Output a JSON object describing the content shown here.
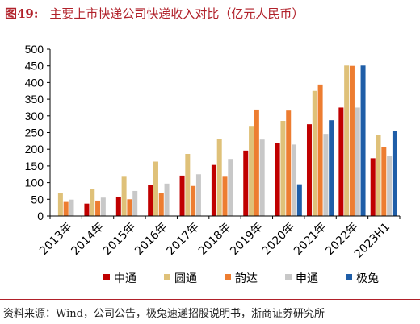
{
  "header": {
    "figure_label": "图49:",
    "title": "主要上市快递公司快递收入对比（亿元人民币）"
  },
  "footer": {
    "source": "资料来源：Wind，公司公告，极兔速递招股说明书，浙商证券研究所"
  },
  "colors": {
    "accent": "#b1212a"
  },
  "chart_data": {
    "type": "bar",
    "categories": [
      "2013年",
      "2014年",
      "2015年",
      "2016年",
      "2017年",
      "2018年",
      "2019年",
      "2020年",
      "2021年",
      "2022年",
      "2023H1"
    ],
    "series": [
      {
        "name": "中通",
        "color": "#c00000",
        "values": [
          null,
          37,
          58,
          93,
          121,
          153,
          196,
          219,
          275,
          325,
          173
        ]
      },
      {
        "name": "圆通",
        "color": "#dfc179",
        "values": [
          68,
          81,
          120,
          163,
          186,
          231,
          270,
          285,
          375,
          451,
          243
        ]
      },
      {
        "name": "韵达",
        "color": "#ed7d31",
        "values": [
          42,
          46,
          50,
          68,
          90,
          120,
          319,
          316,
          394,
          450,
          206
        ]
      },
      {
        "name": "申通",
        "color": "#c8c8c8",
        "values": [
          49,
          55,
          75,
          97,
          125,
          171,
          229,
          214,
          246,
          325,
          181
        ]
      },
      {
        "name": "极兔",
        "color": "#1f5ea8",
        "values": [
          null,
          null,
          null,
          null,
          null,
          null,
          null,
          95,
          287,
          451,
          256
        ]
      }
    ],
    "legend_labels": [
      "中通",
      "圆通",
      "韵达",
      "申通",
      "极兔"
    ],
    "yticks": [
      0,
      50,
      100,
      150,
      200,
      250,
      300,
      350,
      400,
      450,
      500
    ],
    "ylim": [
      0,
      500
    ],
    "legend_position": "bottom",
    "grid": false
  }
}
